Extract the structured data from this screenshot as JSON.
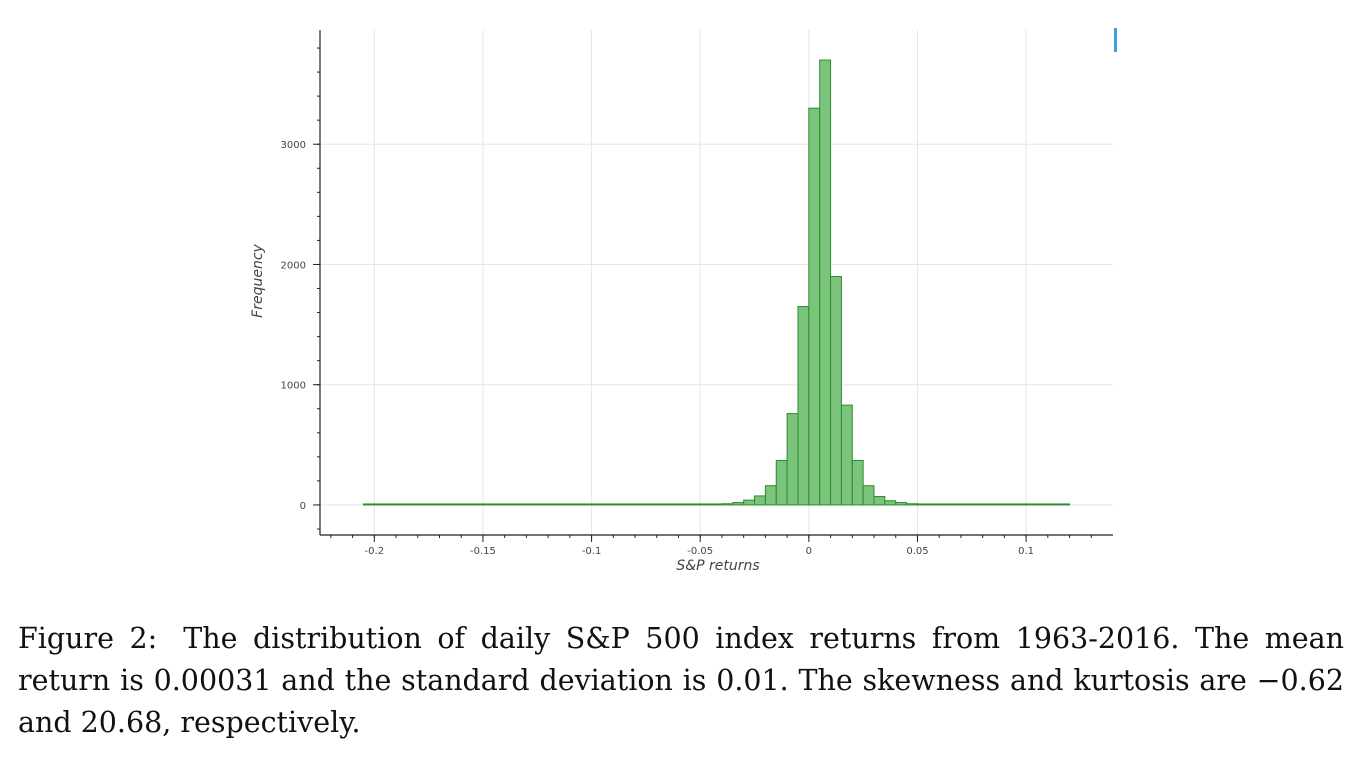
{
  "chart_data": {
    "type": "bar",
    "xlabel": "S&P returns",
    "ylabel": "Frequency",
    "xlim": [
      -0.225,
      0.14
    ],
    "ylim": [
      -250,
      3950
    ],
    "x_ticks": [
      -0.2,
      -0.15,
      -0.1,
      -0.05,
      0,
      0.05,
      0.1
    ],
    "x_tick_labels": [
      "-0.2",
      "-0.15",
      "-0.1",
      "-0.05",
      "0",
      "0.05",
      "0.1"
    ],
    "y_ticks": [
      0,
      1000,
      2000,
      3000
    ],
    "y_tick_labels": [
      "0",
      "1000",
      "2000",
      "3000"
    ],
    "grid": true,
    "bar_color": "#7bc47b",
    "bar_edge_color": "#2e8b2e",
    "bin_width": 0.005,
    "bins": [
      {
        "x0": -0.205,
        "x1": -0.07,
        "value": 0
      },
      {
        "x0": -0.07,
        "x1": -0.05,
        "value": 2
      },
      {
        "x0": -0.05,
        "x1": -0.04,
        "value": 5
      },
      {
        "x0": -0.04,
        "x1": -0.035,
        "value": 10
      },
      {
        "x0": -0.035,
        "x1": -0.03,
        "value": 20
      },
      {
        "x0": -0.03,
        "x1": -0.025,
        "value": 40
      },
      {
        "x0": -0.025,
        "x1": -0.02,
        "value": 75
      },
      {
        "x0": -0.02,
        "x1": -0.015,
        "value": 160
      },
      {
        "x0": -0.015,
        "x1": -0.01,
        "value": 370
      },
      {
        "x0": -0.01,
        "x1": -0.005,
        "value": 760
      },
      {
        "x0": -0.005,
        "x1": 0.0,
        "value": 1650
      },
      {
        "x0": 0.0,
        "x1": 0.005,
        "value": 3300
      },
      {
        "x0": 0.005,
        "x1": 0.01,
        "value": 3700
      },
      {
        "x0": 0.01,
        "x1": 0.015,
        "value": 1900
      },
      {
        "x0": 0.015,
        "x1": 0.02,
        "value": 830
      },
      {
        "x0": 0.02,
        "x1": 0.025,
        "value": 370
      },
      {
        "x0": 0.025,
        "x1": 0.03,
        "value": 160
      },
      {
        "x0": 0.03,
        "x1": 0.035,
        "value": 70
      },
      {
        "x0": 0.035,
        "x1": 0.04,
        "value": 35
      },
      {
        "x0": 0.04,
        "x1": 0.045,
        "value": 20
      },
      {
        "x0": 0.045,
        "x1": 0.05,
        "value": 10
      },
      {
        "x0": 0.05,
        "x1": 0.055,
        "value": 5
      },
      {
        "x0": 0.055,
        "x1": 0.07,
        "value": 2
      },
      {
        "x0": 0.07,
        "x1": 0.12,
        "value": 0
      }
    ]
  },
  "caption": {
    "label": "Figure 2:",
    "text": "The distribution of daily S&P 500 index returns from 1963-2016. The mean return is 0.00031 and the standard deviation is 0.01. The skewness and kurtosis are −0.62 and 20.68, respectively."
  }
}
